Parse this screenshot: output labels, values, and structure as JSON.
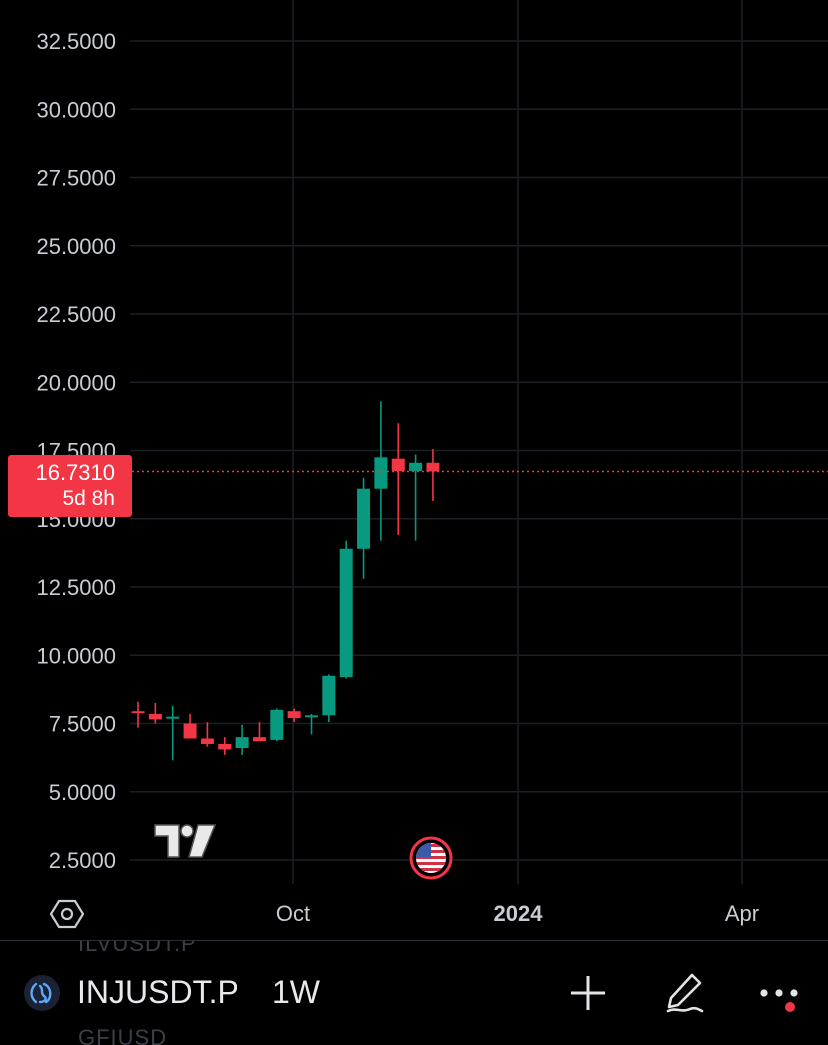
{
  "chart_data": {
    "type": "candlestick",
    "symbol": "INJUSDT.P",
    "interval": "1W",
    "y_ticks": [
      "32.5000",
      "30.0000",
      "27.5000",
      "25.0000",
      "22.5000",
      "20.0000",
      "17.5000",
      "15.0000",
      "12.5000",
      "10.0000",
      "7.5000",
      "5.0000",
      "2.5000"
    ],
    "x_ticks": [
      {
        "label": "Oct",
        "bold": false
      },
      {
        "label": "2024",
        "bold": true
      },
      {
        "label": "Apr",
        "bold": false
      }
    ],
    "ylim": [
      2.5,
      32.5
    ],
    "grid": true,
    "colors": {
      "up": "#089981",
      "down": "#f23645",
      "grid": "#1c1f26",
      "last_price_line": "#f23645"
    },
    "candles": [
      {
        "o": 7.95,
        "h": 8.3,
        "l": 7.35,
        "c": 7.9
      },
      {
        "o": 7.85,
        "h": 8.25,
        "l": 7.5,
        "c": 7.65
      },
      {
        "o": 7.7,
        "h": 8.15,
        "l": 6.15,
        "c": 7.75
      },
      {
        "o": 7.5,
        "h": 7.85,
        "l": 6.95,
        "c": 6.95
      },
      {
        "o": 6.95,
        "h": 7.55,
        "l": 6.65,
        "c": 6.75
      },
      {
        "o": 6.75,
        "h": 7.0,
        "l": 6.35,
        "c": 6.55
      },
      {
        "o": 6.6,
        "h": 7.45,
        "l": 6.35,
        "c": 7.0
      },
      {
        "o": 7.0,
        "h": 7.55,
        "l": 6.85,
        "c": 6.85
      },
      {
        "o": 6.9,
        "h": 8.05,
        "l": 6.85,
        "c": 8.0
      },
      {
        "o": 7.95,
        "h": 8.05,
        "l": 7.55,
        "c": 7.7
      },
      {
        "o": 7.75,
        "h": 7.85,
        "l": 7.1,
        "c": 7.8
      },
      {
        "o": 7.8,
        "h": 9.3,
        "l": 7.55,
        "c": 9.25
      },
      {
        "o": 9.2,
        "h": 14.2,
        "l": 9.15,
        "c": 13.9
      },
      {
        "o": 13.9,
        "h": 16.5,
        "l": 12.8,
        "c": 16.1
      },
      {
        "o": 16.1,
        "h": 19.3,
        "l": 14.2,
        "c": 17.25
      },
      {
        "o": 17.2,
        "h": 18.5,
        "l": 14.4,
        "c": 16.75
      },
      {
        "o": 16.75,
        "h": 17.35,
        "l": 14.2,
        "c": 17.05
      },
      {
        "o": 17.05,
        "h": 17.55,
        "l": 15.65,
        "c": 16.731
      }
    ],
    "last_price": {
      "value": "16.7310",
      "countdown": "5d 8h"
    }
  },
  "markers": {
    "tv_logo": "tradingview-logo",
    "event_flag": "us-flag-icon"
  },
  "bottom_bar": {
    "ghost_above": "ILVUSDT.P",
    "symbol": "INJUSDT.P",
    "ghost_below": "GFIUSD",
    "interval": "1W",
    "buttons": [
      {
        "name": "add-button",
        "icon": "plus-icon"
      },
      {
        "name": "draw-button",
        "icon": "pen-icon"
      },
      {
        "name": "more-button",
        "icon": "more-dots-icon",
        "badge_color": "#f23645"
      }
    ]
  }
}
